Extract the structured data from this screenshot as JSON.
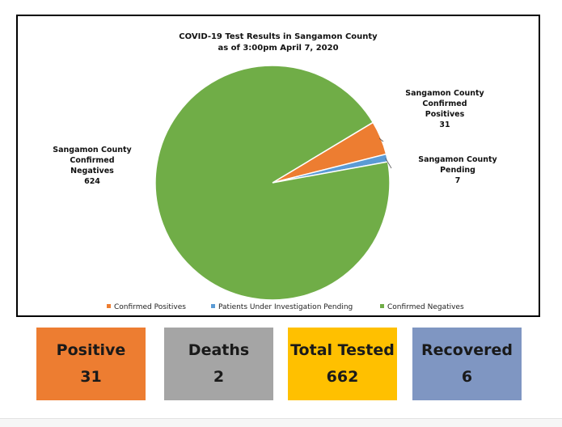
{
  "chart_data": {
    "type": "pie",
    "title": "COVID-19 Test Results in Sangamon County",
    "subtitle": "as of 3:00pm April 7, 2020",
    "slices": [
      {
        "legend": "Confirmed Positives",
        "label_lines": [
          "Sangamon County",
          "Confirmed",
          "Positives",
          "31"
        ],
        "value": 31,
        "color": "#ed7d31"
      },
      {
        "legend": "Patients Under Investigation Pending",
        "label_lines": [
          "Sangamon County",
          "Pending",
          "7"
        ],
        "value": 7,
        "color": "#5b9bd5"
      },
      {
        "legend": "Confirmed Negatives",
        "label_lines": [
          "Sangamon County",
          "Confirmed",
          "Negatives",
          "624"
        ],
        "value": 624,
        "color": "#70ad47"
      }
    ],
    "legend_position": "bottom"
  },
  "stats": [
    {
      "label": "Positive",
      "value": "31",
      "color": "#ed7d31"
    },
    {
      "label": "Deaths",
      "value": "2",
      "color": "#a5a5a5"
    },
    {
      "label": "Total Tested",
      "value": "662",
      "color": "#ffc000"
    },
    {
      "label": "Recovered",
      "value": "6",
      "color": "#7f96c2"
    }
  ]
}
